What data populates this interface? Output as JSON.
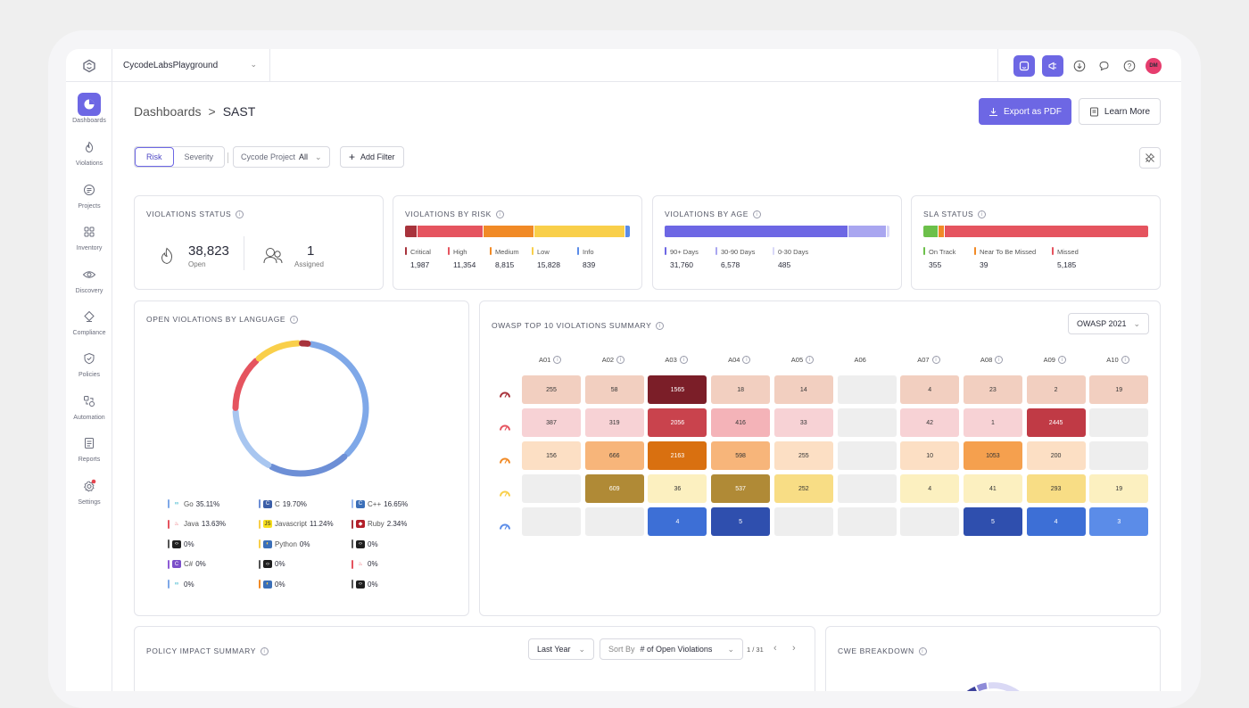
{
  "topbar": {
    "org_name": "CycodeLabsPlayground",
    "avatar_initials": "DM"
  },
  "sidebar": {
    "items": [
      {
        "label": "Dashboards",
        "icon": "pie-chart-icon"
      },
      {
        "label": "Violations",
        "icon": "flame-icon"
      },
      {
        "label": "Projects",
        "icon": "projects-icon"
      },
      {
        "label": "Inventory",
        "icon": "grid-icon"
      },
      {
        "label": "Discovery",
        "icon": "eye-icon"
      },
      {
        "label": "Compliance",
        "icon": "compliance-icon"
      },
      {
        "label": "Policies",
        "icon": "shield-icon"
      },
      {
        "label": "Automation",
        "icon": "automation-icon"
      },
      {
        "label": "Reports",
        "icon": "report-icon"
      },
      {
        "label": "Settings",
        "icon": "gear-icon"
      }
    ]
  },
  "header": {
    "breadcrumb_root": "Dashboards",
    "breadcrumb_sep": ">",
    "breadcrumb_current": "SAST",
    "export_label": "Export as PDF",
    "learn_label": "Learn More"
  },
  "filters": {
    "tab_risk": "Risk",
    "tab_severity": "Severity",
    "project_label": "Cycode Project",
    "project_value": "All",
    "add_filter": "Add Filter"
  },
  "violations_status": {
    "title": "VIOLATIONS STATUS",
    "open_value": "38,823",
    "open_label": "Open",
    "assigned_value": "1",
    "assigned_label": "Assigned"
  },
  "violations_by_risk": {
    "title": "VIOLATIONS BY RISK",
    "items": [
      {
        "label": "Critical",
        "value": "1,987",
        "num": 1987,
        "color": "#a8333c"
      },
      {
        "label": "High",
        "value": "11,354",
        "num": 11354,
        "color": "#e5545f"
      },
      {
        "label": "Medium",
        "value": "8,815",
        "num": 8815,
        "color": "#f18a26"
      },
      {
        "label": "Low",
        "value": "15,828",
        "num": 15828,
        "color": "#f9cf4a"
      },
      {
        "label": "Info",
        "value": "839",
        "num": 839,
        "color": "#5b8ce8"
      }
    ]
  },
  "violations_by_age": {
    "title": "VIOLATIONS BY AGE",
    "items": [
      {
        "label": "90+ Days",
        "value": "31,760",
        "num": 31760,
        "color": "#6d67e4"
      },
      {
        "label": "30-90 Days",
        "value": "6,578",
        "num": 6578,
        "color": "#a9a6f0"
      },
      {
        "label": "0-30 Days",
        "value": "485",
        "num": 485,
        "color": "#d9d8f8"
      }
    ]
  },
  "sla_status": {
    "title": "SLA STATUS",
    "items": [
      {
        "label": "On Track",
        "value": "355",
        "num": 355,
        "color": "#6cc04a"
      },
      {
        "label": "Near To Be Missed",
        "value": "39",
        "num": 39,
        "color": "#f18a26"
      },
      {
        "label": "Missed",
        "value": "5,185",
        "num": 5185,
        "color": "#e5545f"
      }
    ]
  },
  "languages": {
    "title": "OPEN VIOLATIONS BY LANGUAGE",
    "items": [
      {
        "name": "Go",
        "pct": "35.11%",
        "color": "#7fa8e8",
        "icon": "go-icon"
      },
      {
        "name": "C",
        "pct": "19.70%",
        "color": "#6d8fd6",
        "icon": "c-icon"
      },
      {
        "name": "C++",
        "pct": "16.65%",
        "color": "#9cbbee",
        "icon": "cpp-icon"
      },
      {
        "name": "Java",
        "pct": "13.63%",
        "color": "#e5545f",
        "icon": "java-icon"
      },
      {
        "name": "Javascript",
        "pct": "11.24%",
        "color": "#f9cf4a",
        "icon": "js-icon"
      },
      {
        "name": "Ruby",
        "pct": "2.34%",
        "color": "#a8333c",
        "icon": "ruby-icon"
      },
      {
        "name": "",
        "pct": "0%",
        "color": "#555",
        "icon": "code-icon"
      },
      {
        "name": "Python",
        "pct": "0%",
        "color": "#f9cf4a",
        "icon": "python-icon"
      },
      {
        "name": "",
        "pct": "0%",
        "color": "#555",
        "icon": "code-icon"
      },
      {
        "name": "C#",
        "pct": "0%",
        "color": "#8e5cd6",
        "icon": "csharp-icon"
      },
      {
        "name": "",
        "pct": "0%",
        "color": "#555",
        "icon": "code-icon"
      },
      {
        "name": "",
        "pct": "0%",
        "color": "#e5545f",
        "icon": "java-icon"
      },
      {
        "name": "",
        "pct": "0%",
        "color": "#7fa8e8",
        "icon": "go-icon"
      },
      {
        "name": "",
        "pct": "0%",
        "color": "#f18a26",
        "icon": "python-icon"
      },
      {
        "name": "",
        "pct": "0%",
        "color": "#555",
        "icon": "code-icon"
      }
    ],
    "donut": [
      {
        "pct": 35.11,
        "color": "#7fa8e8"
      },
      {
        "pct": 19.7,
        "color": "#6d8fd6"
      },
      {
        "pct": 16.65,
        "color": "#a8c6f0"
      },
      {
        "pct": 13.63,
        "color": "#e5545f"
      },
      {
        "pct": 11.24,
        "color": "#f9cf4a"
      },
      {
        "pct": 2.34,
        "color": "#a8333c"
      }
    ]
  },
  "owasp": {
    "title": "OWASP TOP 10 VIOLATIONS SUMMARY",
    "version": "OWASP 2021",
    "columns": [
      "A01",
      "A02",
      "A03",
      "A04",
      "A05",
      "A06",
      "A07",
      "A08",
      "A09",
      "A10"
    ],
    "rows": [
      {
        "level": "critical",
        "icon_color": "#a8333c",
        "cells": [
          {
            "v": "255",
            "bg": "#f2cfc0",
            "fg": "#333"
          },
          {
            "v": "58",
            "bg": "#f2cfc0",
            "fg": "#333"
          },
          {
            "v": "1565",
            "bg": "#7b1e28",
            "fg": "#fff"
          },
          {
            "v": "18",
            "bg": "#f2cfc0",
            "fg": "#333"
          },
          {
            "v": "14",
            "bg": "#f2cfc0",
            "fg": "#333"
          },
          {
            "v": "",
            "bg": "#eeeeee",
            "fg": "#333"
          },
          {
            "v": "4",
            "bg": "#f2cfc0",
            "fg": "#333"
          },
          {
            "v": "23",
            "bg": "#f2cfc0",
            "fg": "#333"
          },
          {
            "v": "2",
            "bg": "#f2cfc0",
            "fg": "#333"
          },
          {
            "v": "19",
            "bg": "#f2cfc0",
            "fg": "#333"
          }
        ]
      },
      {
        "level": "high",
        "icon_color": "#e5545f",
        "cells": [
          {
            "v": "387",
            "bg": "#f7d2d5",
            "fg": "#333"
          },
          {
            "v": "319",
            "bg": "#f7d2d5",
            "fg": "#333"
          },
          {
            "v": "2056",
            "bg": "#c9434d",
            "fg": "#fff"
          },
          {
            "v": "416",
            "bg": "#f4b3b8",
            "fg": "#333"
          },
          {
            "v": "33",
            "bg": "#f7d2d5",
            "fg": "#333"
          },
          {
            "v": "",
            "bg": "#eeeeee",
            "fg": "#333"
          },
          {
            "v": "42",
            "bg": "#f7d2d5",
            "fg": "#333"
          },
          {
            "v": "1",
            "bg": "#f7d2d5",
            "fg": "#333"
          },
          {
            "v": "2445",
            "bg": "#c03a45",
            "fg": "#fff"
          },
          {
            "v": "",
            "bg": "#eeeeee",
            "fg": "#333"
          }
        ]
      },
      {
        "level": "medium",
        "icon_color": "#f18a26",
        "cells": [
          {
            "v": "156",
            "bg": "#fcdfc4",
            "fg": "#333"
          },
          {
            "v": "666",
            "bg": "#f7b57a",
            "fg": "#333"
          },
          {
            "v": "2163",
            "bg": "#d97010",
            "fg": "#fff"
          },
          {
            "v": "598",
            "bg": "#f7b57a",
            "fg": "#333"
          },
          {
            "v": "255",
            "bg": "#fcdfc4",
            "fg": "#333"
          },
          {
            "v": "",
            "bg": "#eeeeee",
            "fg": "#333"
          },
          {
            "v": "10",
            "bg": "#fcdfc4",
            "fg": "#333"
          },
          {
            "v": "1053",
            "bg": "#f5a04e",
            "fg": "#333"
          },
          {
            "v": "200",
            "bg": "#fcdfc4",
            "fg": "#333"
          },
          {
            "v": "",
            "bg": "#eeeeee",
            "fg": "#333"
          }
        ]
      },
      {
        "level": "low",
        "icon_color": "#f9cf4a",
        "cells": [
          {
            "v": "",
            "bg": "#eeeeee",
            "fg": "#333"
          },
          {
            "v": "609",
            "bg": "#b08a36",
            "fg": "#fff"
          },
          {
            "v": "36",
            "bg": "#fcf0c0",
            "fg": "#333"
          },
          {
            "v": "537",
            "bg": "#b08a36",
            "fg": "#fff"
          },
          {
            "v": "252",
            "bg": "#f8dd85",
            "fg": "#333"
          },
          {
            "v": "",
            "bg": "#eeeeee",
            "fg": "#333"
          },
          {
            "v": "4",
            "bg": "#fcf0c0",
            "fg": "#333"
          },
          {
            "v": "41",
            "bg": "#fcf0c0",
            "fg": "#333"
          },
          {
            "v": "293",
            "bg": "#f8dd85",
            "fg": "#333"
          },
          {
            "v": "19",
            "bg": "#fcf0c0",
            "fg": "#333"
          }
        ]
      },
      {
        "level": "info",
        "icon_color": "#5b8ce8",
        "cells": [
          {
            "v": "",
            "bg": "#eeeeee",
            "fg": "#333"
          },
          {
            "v": "",
            "bg": "#eeeeee",
            "fg": "#333"
          },
          {
            "v": "4",
            "bg": "#3d6fd6",
            "fg": "#fff"
          },
          {
            "v": "5",
            "bg": "#2f4fae",
            "fg": "#fff"
          },
          {
            "v": "",
            "bg": "#eeeeee",
            "fg": "#333"
          },
          {
            "v": "",
            "bg": "#eeeeee",
            "fg": "#333"
          },
          {
            "v": "",
            "bg": "#eeeeee",
            "fg": "#333"
          },
          {
            "v": "5",
            "bg": "#2f4fae",
            "fg": "#fff"
          },
          {
            "v": "4",
            "bg": "#3d6fd6",
            "fg": "#fff"
          },
          {
            "v": "3",
            "bg": "#5b8ce8",
            "fg": "#fff"
          }
        ]
      }
    ]
  },
  "policy_impact": {
    "title": "POLICY IMPACT SUMMARY",
    "period": "Last Year",
    "sort_label": "Sort By",
    "sort_value": "# of Open Violations",
    "pager": "1 / 31"
  },
  "cwe": {
    "title": "CWE BREAKDOWN"
  }
}
